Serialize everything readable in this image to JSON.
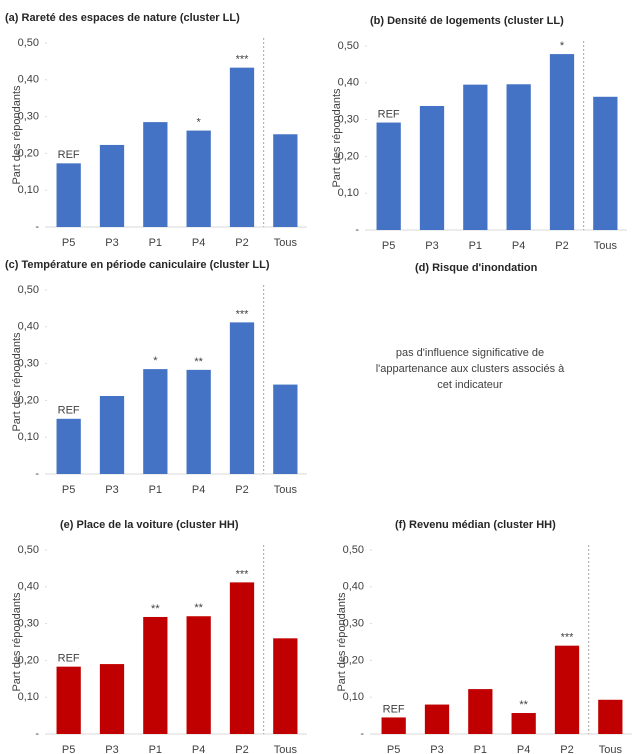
{
  "chart_data": [
    {
      "type": "bar",
      "title": "(a) Rareté des espaces de nature (cluster LL)",
      "y_label": "Part des répondants",
      "categories": [
        "P5",
        "P3",
        "P1",
        "P4",
        "P2",
        "Tous"
      ],
      "values": [
        0.173,
        0.223,
        0.285,
        0.262,
        0.433,
        0.252
      ],
      "annotations": [
        "REF",
        null,
        null,
        "*",
        "***",
        null
      ],
      "color": "#4472c4",
      "ylim": [
        0,
        0.5
      ],
      "yticks": [
        {
          "value": 0,
          "label": "-"
        },
        {
          "value": 0.1,
          "label": "0,10"
        },
        {
          "value": 0.2,
          "label": "0,20"
        },
        {
          "value": 0.3,
          "label": "0,30"
        },
        {
          "value": 0.4,
          "label": "0,40"
        },
        {
          "value": 0.5,
          "label": "0,50"
        }
      ]
    },
    {
      "type": "bar",
      "title": "(b) Densité de logements (cluster LL)",
      "y_label": "Part des répondants",
      "categories": [
        "P5",
        "P3",
        "P1",
        "P4",
        "P2",
        "Tous"
      ],
      "values": [
        0.292,
        0.337,
        0.395,
        0.396,
        0.478,
        0.362
      ],
      "annotations": [
        "REF",
        null,
        null,
        null,
        "*",
        null
      ],
      "color": "#4472c4",
      "ylim": [
        0,
        0.5
      ],
      "yticks": [
        {
          "value": 0,
          "label": "-"
        },
        {
          "value": 0.1,
          "label": "0,10"
        },
        {
          "value": 0.2,
          "label": "0,20"
        },
        {
          "value": 0.3,
          "label": "0,30"
        },
        {
          "value": 0.4,
          "label": "0,40"
        },
        {
          "value": 0.5,
          "label": "0,50"
        }
      ]
    },
    {
      "type": "bar",
      "title": "(c) Température en période caniculaire (cluster LL)",
      "y_label": "Part des répondants",
      "categories": [
        "P5",
        "P3",
        "P1",
        "P4",
        "P2",
        "Tous"
      ],
      "values": [
        0.15,
        0.212,
        0.285,
        0.283,
        0.412,
        0.243
      ],
      "annotations": [
        "REF",
        null,
        "*",
        "**",
        "***",
        null
      ],
      "color": "#4472c4",
      "ylim": [
        0,
        0.5
      ],
      "yticks": [
        {
          "value": 0,
          "label": "-"
        },
        {
          "value": 0.1,
          "label": "0,10"
        },
        {
          "value": 0.2,
          "label": "0,20"
        },
        {
          "value": 0.3,
          "label": "0,30"
        },
        {
          "value": 0.4,
          "label": "0,40"
        },
        {
          "value": 0.5,
          "label": "0,50"
        }
      ]
    },
    {
      "type": "text",
      "title": "(d) Risque d'inondation",
      "text_lines": [
        "pas d'influence significative de",
        "l'appartenance aux clusters associés à",
        "cet indicateur"
      ]
    },
    {
      "type": "bar",
      "title": "(e) Place de la voiture (cluster HH)",
      "y_label": "Part des répondants",
      "categories": [
        "P5",
        "P3",
        "P1",
        "P4",
        "P2",
        "Tous"
      ],
      "values": [
        0.183,
        0.19,
        0.318,
        0.32,
        0.412,
        0.26
      ],
      "annotations": [
        "REF",
        null,
        "**",
        "**",
        "***",
        null
      ],
      "color": "#c00000",
      "ylim": [
        0,
        0.5
      ],
      "yticks": [
        {
          "value": 0,
          "label": "-"
        },
        {
          "value": 0.1,
          "label": "0,10"
        },
        {
          "value": 0.2,
          "label": "0,20"
        },
        {
          "value": 0.3,
          "label": "0,30"
        },
        {
          "value": 0.4,
          "label": "0,40"
        },
        {
          "value": 0.5,
          "label": "0,50"
        }
      ]
    },
    {
      "type": "bar",
      "title": "(f) Revenu médian (cluster HH)",
      "y_label": "Part des répondants",
      "categories": [
        "P5",
        "P3",
        "P1",
        "P4",
        "P2",
        "Tous"
      ],
      "values": [
        0.045,
        0.08,
        0.122,
        0.057,
        0.24,
        0.093
      ],
      "annotations": [
        "REF",
        null,
        null,
        "**",
        "***",
        null
      ],
      "color": "#c00000",
      "ylim": [
        0,
        0.5
      ],
      "yticks": [
        {
          "value": 0,
          "label": "-"
        },
        {
          "value": 0.1,
          "label": "0,10"
        },
        {
          "value": 0.2,
          "label": "0,20"
        },
        {
          "value": 0.3,
          "label": "0,30"
        },
        {
          "value": 0.4,
          "label": "0,40"
        },
        {
          "value": 0.5,
          "label": "0,50"
        }
      ]
    }
  ]
}
